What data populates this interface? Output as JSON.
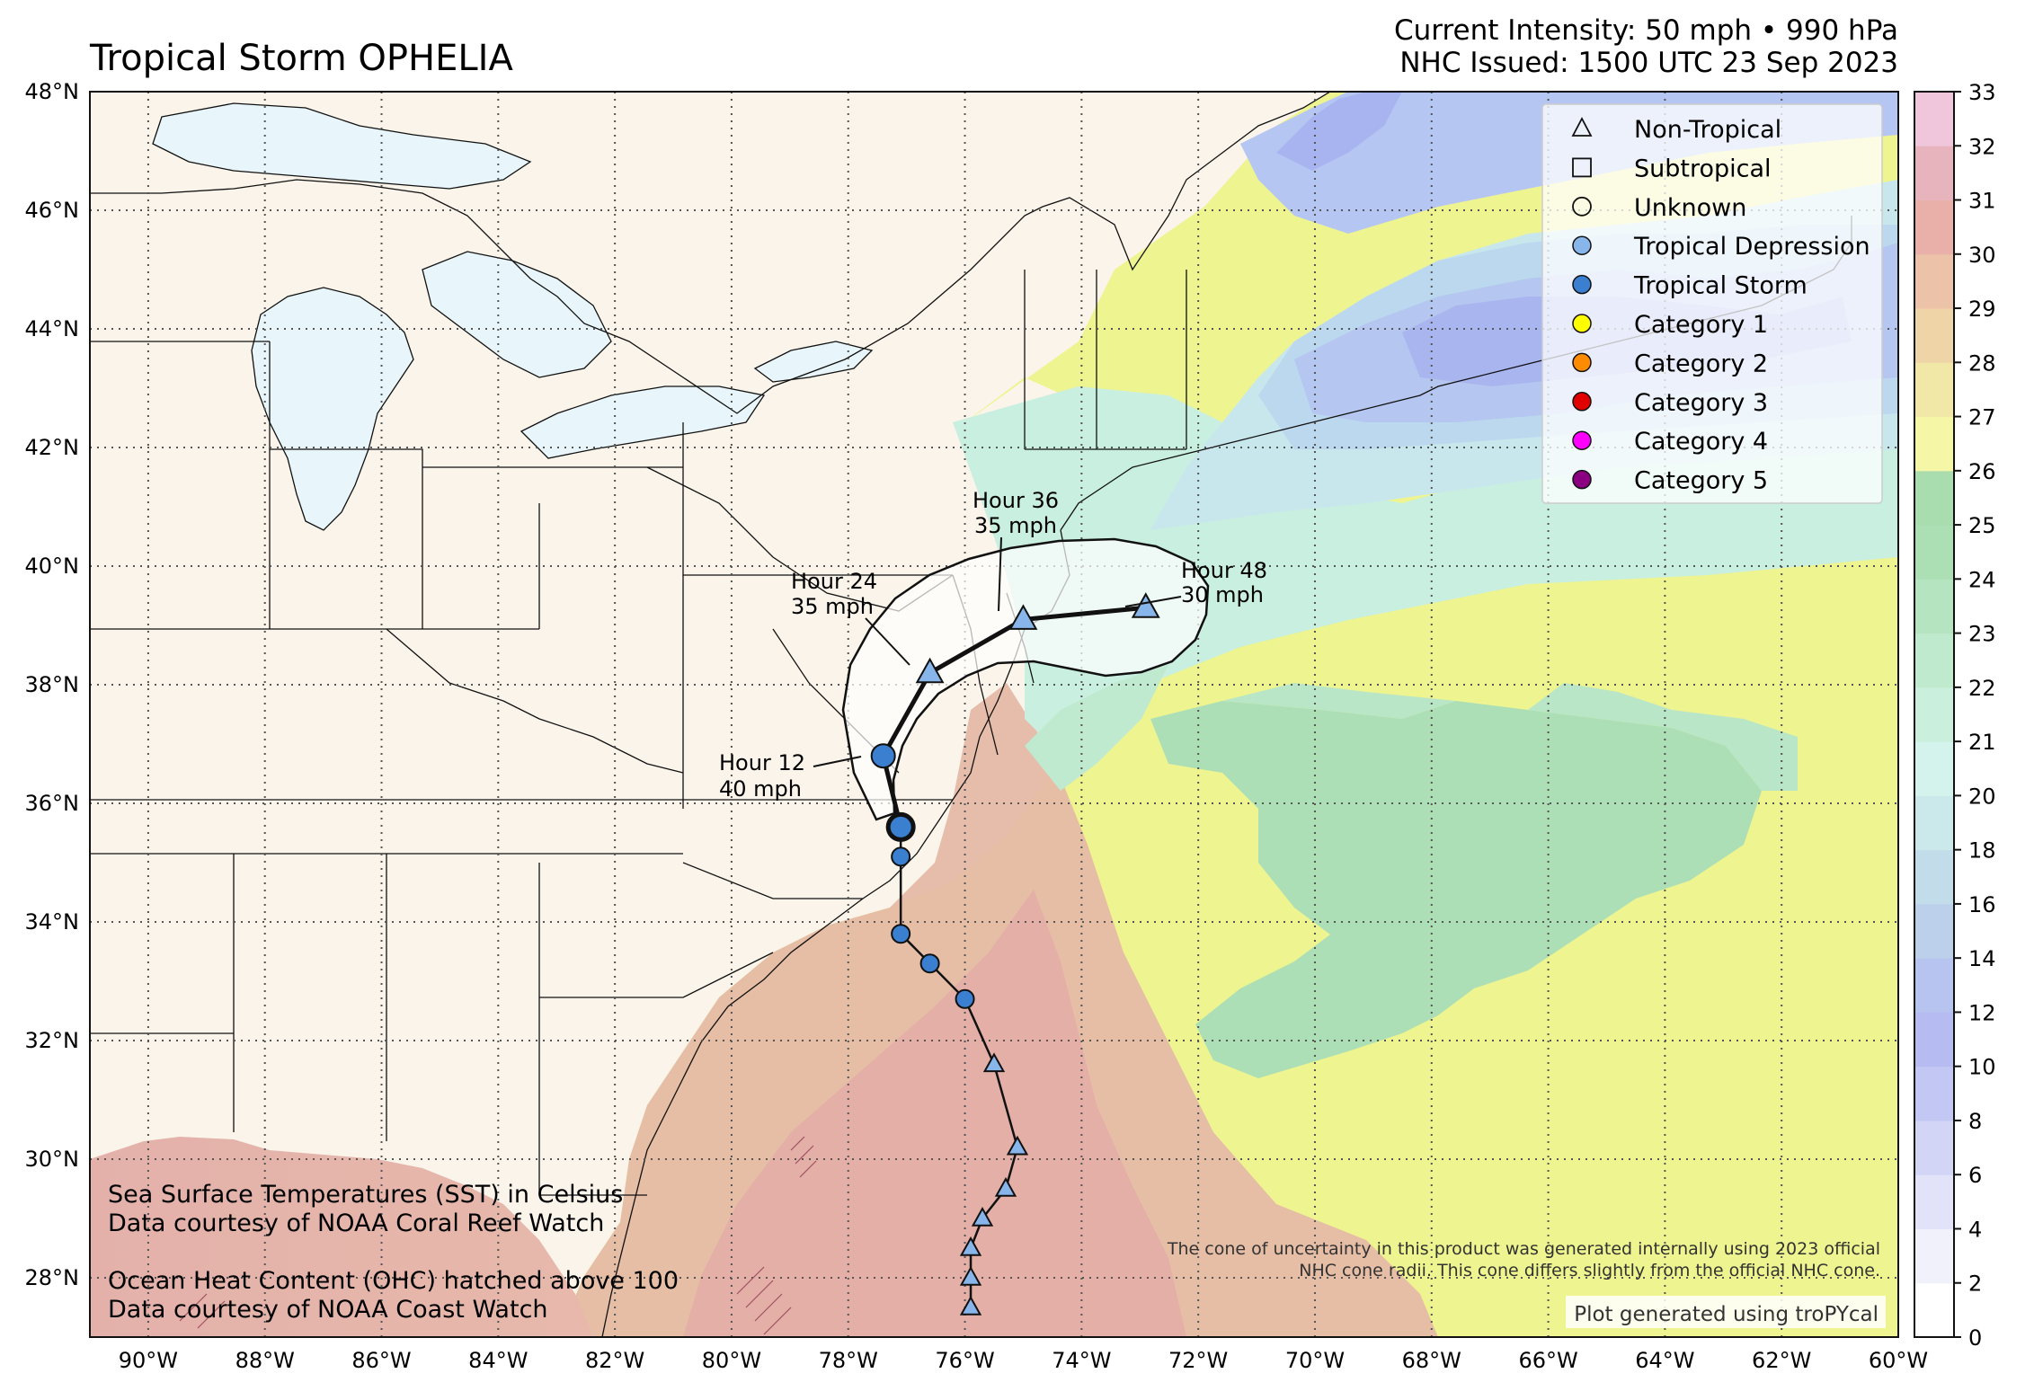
{
  "title": "Tropical Storm OPHELIA",
  "header_right": {
    "line1": "Current Intensity: 50 mph • 990 hPa",
    "line2": "NHC Issued: 1500 UTC 23 Sep 2023"
  },
  "map": {
    "lon_range": [
      -91,
      -60
    ],
    "lat_range": [
      27,
      48
    ],
    "lon_ticks": [
      {
        "value": -90,
        "label": "90°W"
      },
      {
        "value": -88,
        "label": "88°W"
      },
      {
        "value": -86,
        "label": "86°W"
      },
      {
        "value": -84,
        "label": "84°W"
      },
      {
        "value": -82,
        "label": "82°W"
      },
      {
        "value": -80,
        "label": "80°W"
      },
      {
        "value": -78,
        "label": "78°W"
      },
      {
        "value": -76,
        "label": "76°W"
      },
      {
        "value": -74,
        "label": "74°W"
      },
      {
        "value": -72,
        "label": "72°W"
      },
      {
        "value": -70,
        "label": "70°W"
      },
      {
        "value": -68,
        "label": "68°W"
      },
      {
        "value": -66,
        "label": "66°W"
      },
      {
        "value": -64,
        "label": "64°W"
      },
      {
        "value": -62,
        "label": "62°W"
      },
      {
        "value": -60,
        "label": "60°W"
      }
    ],
    "lat_ticks": [
      {
        "value": 48,
        "label": "48°N"
      },
      {
        "value": 46,
        "label": "46°N"
      },
      {
        "value": 44,
        "label": "44°N"
      },
      {
        "value": 42,
        "label": "42°N"
      },
      {
        "value": 40,
        "label": "40°N"
      },
      {
        "value": 38,
        "label": "38°N"
      },
      {
        "value": 36,
        "label": "36°N"
      },
      {
        "value": 34,
        "label": "34°N"
      },
      {
        "value": 32,
        "label": "32°N"
      },
      {
        "value": 30,
        "label": "30°N"
      },
      {
        "value": 28,
        "label": "28°N"
      }
    ],
    "grid": true
  },
  "colors": {
    "land": "#faf4ea",
    "lakes": "#e8f6fb",
    "tropical_depression": "#89b6ea",
    "tropical_storm": "#3a7fd0",
    "category_1": "#ffff00",
    "category_2": "#ff8c00",
    "category_3": "#e00000",
    "category_4": "#ff00ff",
    "category_5": "#8b0080"
  },
  "past_track": [
    {
      "lon": -75.9,
      "lat": 27.5,
      "type": "non-tropical"
    },
    {
      "lon": -75.9,
      "lat": 28.0,
      "type": "non-tropical"
    },
    {
      "lon": -75.9,
      "lat": 28.5,
      "type": "non-tropical"
    },
    {
      "lon": -75.7,
      "lat": 29.0,
      "type": "non-tropical"
    },
    {
      "lon": -75.3,
      "lat": 29.5,
      "type": "non-tropical"
    },
    {
      "lon": -75.1,
      "lat": 30.2,
      "type": "non-tropical"
    },
    {
      "lon": -75.5,
      "lat": 31.6,
      "type": "non-tropical"
    },
    {
      "lon": -76.0,
      "lat": 32.7,
      "type": "tropical-storm"
    },
    {
      "lon": -76.6,
      "lat": 33.3,
      "type": "tropical-storm"
    },
    {
      "lon": -77.1,
      "lat": 33.8,
      "type": "tropical-storm"
    },
    {
      "lon": -77.1,
      "lat": 35.1,
      "type": "tropical-storm"
    }
  ],
  "current_position": {
    "lon": -77.1,
    "lat": 35.6
  },
  "forecast": [
    {
      "lon": -77.4,
      "lat": 36.8,
      "type": "tropical-storm",
      "label": "Hour 12",
      "wind": "40 mph"
    },
    {
      "lon": -76.6,
      "lat": 38.2,
      "type": "non-tropical",
      "label": "Hour 24",
      "wind": "35 mph"
    },
    {
      "lon": -75.0,
      "lat": 39.1,
      "type": "non-tropical",
      "label": "Hour 36",
      "wind": "35 mph"
    },
    {
      "lon": -72.9,
      "lat": 39.3,
      "type": "non-tropical",
      "label": "Hour 48",
      "wind": "30 mph"
    }
  ],
  "legend": {
    "items": [
      {
        "label": "Non-Tropical",
        "marker": "triangle-open"
      },
      {
        "label": "Subtropical",
        "marker": "square-open"
      },
      {
        "label": "Unknown",
        "marker": "circle-open"
      },
      {
        "label": "Tropical Depression",
        "marker": "circle",
        "color": "#89b6ea"
      },
      {
        "label": "Tropical Storm",
        "marker": "circle",
        "color": "#3a7fd0"
      },
      {
        "label": "Category 1",
        "marker": "circle",
        "color": "#ffff00"
      },
      {
        "label": "Category 2",
        "marker": "circle",
        "color": "#ff8c00"
      },
      {
        "label": "Category 3",
        "marker": "circle",
        "color": "#e00000"
      },
      {
        "label": "Category 4",
        "marker": "circle",
        "color": "#ff00ff"
      },
      {
        "label": "Category 5",
        "marker": "circle",
        "color": "#8b0080"
      }
    ]
  },
  "colorbar": {
    "ticks": [
      0,
      2,
      4,
      6,
      8,
      10,
      12,
      14,
      16,
      18,
      20,
      21,
      22,
      23,
      24,
      25,
      26,
      27,
      28,
      29,
      30,
      31,
      32,
      33
    ],
    "band_colors": [
      "#ffffff",
      "#f1f1fb",
      "#e2e3f8",
      "#d2d5f6",
      "#c2c7f4",
      "#b6bcf2",
      "#b7c4ef",
      "#bcd0ec",
      "#c3dcea",
      "#cbe8ea",
      "#d4f3ec",
      "#caefdc",
      "#bfeacd",
      "#b5e5c0",
      "#acdfb4",
      "#a9dcae",
      "#f5f6a6",
      "#f1e7a6",
      "#efd4a8",
      "#ecc2a9",
      "#e9b0aa",
      "#e7b3bc",
      "#efc6db"
    ]
  },
  "notes": {
    "sst_line1": "Sea Surface Temperatures (SST) in Celsius",
    "sst_line2": "Data courtesy of NOAA Coral Reef Watch",
    "ohc_line1": "Ocean Heat Content (OHC) hatched above 100",
    "ohc_line2": "Data courtesy of NOAA Coast Watch",
    "cone_line1": "The cone of uncertainty in this product was generated internally using 2023 official",
    "cone_line2": "NHC cone radii. This cone differs slightly from the official NHC cone.",
    "credit": "Plot generated using troPYcal"
  }
}
